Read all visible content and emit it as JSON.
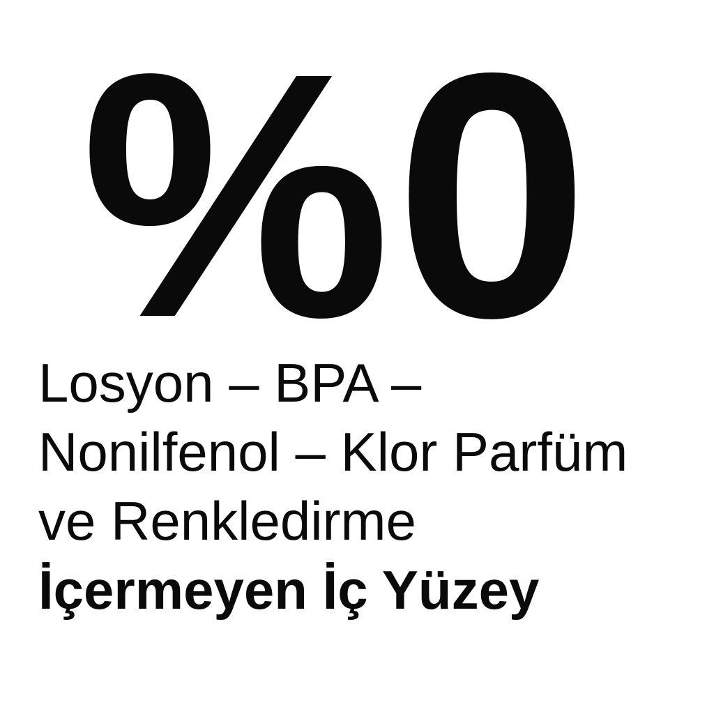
{
  "colors": {
    "background": "#ffffff",
    "text": "#0a0a0a"
  },
  "graphic": {
    "headline": "%0",
    "description_lines": [
      "Losyon – BPA –",
      "Nonilfenol – Klor Parfüm",
      "ve Renkledirme"
    ],
    "emphasis_line": "İçermeyen İç Yüzey"
  }
}
